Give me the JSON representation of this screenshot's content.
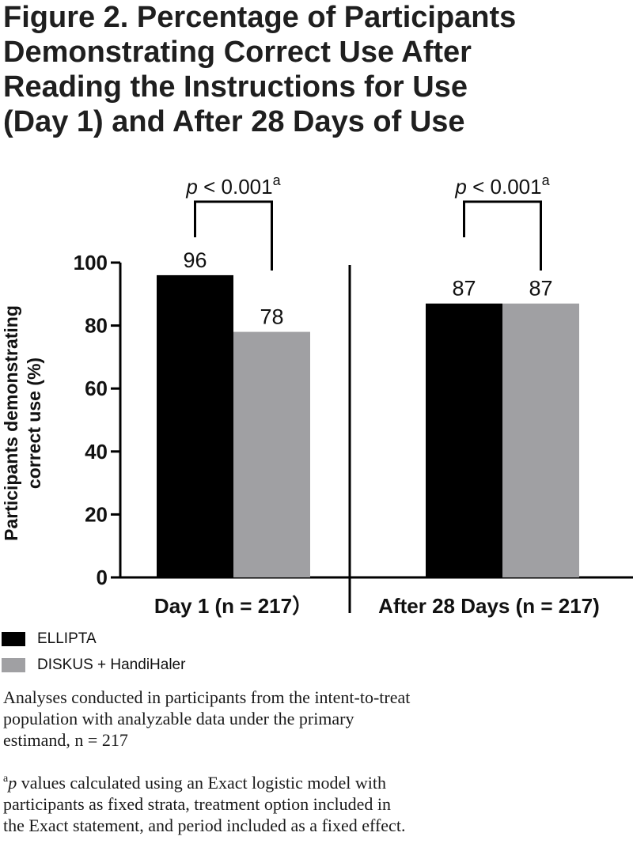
{
  "figure": {
    "title_lines": [
      "Figure 2. Percentage of Participants",
      "Demonstrating Correct Use After",
      "Reading the Instructions for Use",
      "(Day 1) and After 28 Days of Use"
    ]
  },
  "colors": {
    "ellipta": "#000000",
    "diskus_handihaler": "#a0a0a3",
    "axis": "#000000",
    "text": "#111111"
  },
  "chart_data": {
    "type": "bar",
    "categories": [
      "Day 1 (n = 217）",
      "After 28 Days (n = 217)"
    ],
    "series": [
      {
        "name": "ELLIPTA",
        "values": [
          96,
          87
        ]
      },
      {
        "name": "DISKUS + HandiHaler",
        "values": [
          78,
          87
        ]
      }
    ],
    "ylabel_lines": [
      "Participants demonstrating",
      "correct use (%)"
    ],
    "ylim": [
      0,
      100
    ],
    "yticks": [
      0,
      20,
      40,
      60,
      80,
      100
    ],
    "grid": false,
    "legend_position": "bottom-left",
    "annotations": [
      {
        "group": 0,
        "p_italic": "p",
        "text": " < 0.001",
        "superscript": "a"
      },
      {
        "group": 1,
        "p_italic": "p",
        "text": " < 0.001",
        "superscript": "a"
      }
    ]
  },
  "legend": {
    "items": [
      {
        "label": "ELLIPTA",
        "color": "#000000"
      },
      {
        "label": "DISKUS + HandiHaler",
        "color": "#a0a0a3"
      }
    ]
  },
  "footnotes": {
    "note1_lines": [
      "Analyses conducted in participants from the intent-to-treat",
      "population with analyzable data under the primary",
      "estimand, n = 217"
    ],
    "note2_mark": "a",
    "note2_p": "p",
    "note2_first": " values calculated using an Exact logistic model with",
    "note2_lines": [
      "participants as fixed strata, treatment option included in",
      "the Exact statement, and period included as a fixed effect."
    ]
  }
}
